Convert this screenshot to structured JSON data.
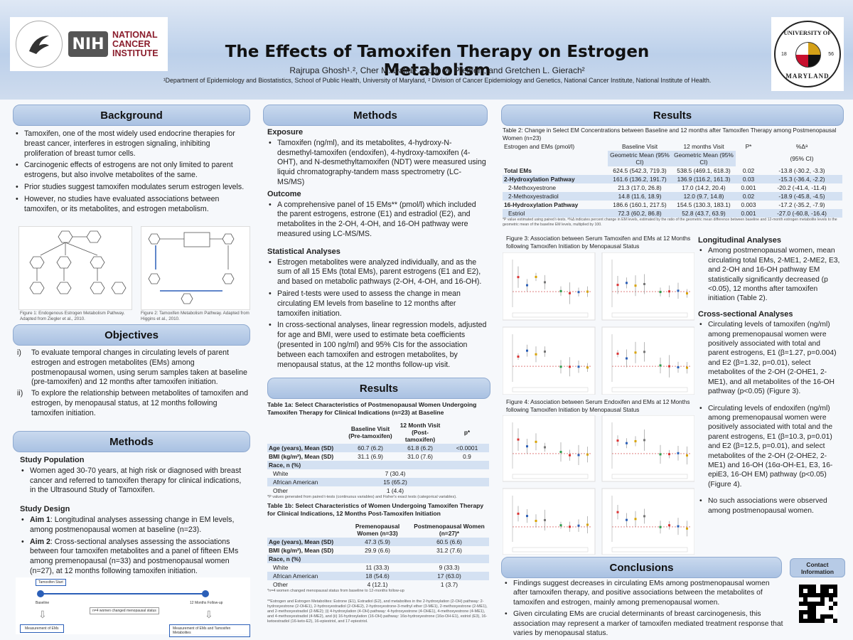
{
  "header": {
    "title": "The Effects of Tamoxifen Therapy on Estrogen Metabolism",
    "authors": "Rajrupa Ghosh¹˒², Cher M. Dallal¹, Ruth M. Pfeiffer², and Gretchen L. Gierach²",
    "affiliations": "¹Department of Epidemiology and Biostatistics, School of Public Health, University of Maryland, ² Division of Cancer Epidemiology and Genetics, National Cancer Institute, National Institute of Health.",
    "nih": "NIH",
    "nci": "NATIONAL CANCER INSTITUTE",
    "umd_top": "UNIVERSITY OF",
    "umd_bottom": "MARYLAND",
    "umd_left": "18",
    "umd_right": "56"
  },
  "background": {
    "heading": "Background",
    "bullets": [
      "Tamoxifen, one of the most widely used endocrine therapies for breast cancer, interferes in estrogen signaling, inhibiting proliferation of breast tumor cells.",
      "Carcinogenic effects of estrogens are not only limited to parent estrogens, but also involve metabolites of the same.",
      "Prior studies suggest tamoxifen modulates serum estrogen levels.",
      "However, no studies have evaluated associations between tamoxifen, or its metabolites, and estrogen metabolism."
    ],
    "fig1_caption": "Figure 1: Endogenous Estrogen Metabolism Pathway. Adapted from Ziegler et al., 2010.",
    "fig2_caption": "Figure 2: Tamoxifen Metabolism Pathway. Adapted from Higgins et al., 2010."
  },
  "objectives": {
    "heading": "Objectives",
    "items": [
      {
        "num": "i)",
        "text": "To evaluate temporal changes in circulating levels of parent estrogen and estrogen metabolites (EMs) among postmenopausal women, using serum samples taken at baseline (pre-tamoxifen) and 12 months after tamoxifen initiation."
      },
      {
        "num": "ii)",
        "text": "To explore the relationship between metabolites of tamoxifen and estrogen, by menopausal status, at 12 months following tamoxifen initiation."
      }
    ]
  },
  "methods_left": {
    "heading": "Methods",
    "study_population_title": "Study Population",
    "study_population": "Women aged 30-70 years, at high risk or diagnosed with breast cancer and referred to tamoxifen therapy for clinical indications, in the Ultrasound Study of Tamoxifen.",
    "study_design_title": "Study Design",
    "aim1_label": "Aim 1",
    "aim1": ": Longitudinal analyses assessing change in EM levels, among postmenopausal women at baseline (n=23).",
    "aim2_label": "Aim 2",
    "aim2": ": Cross-sectional analyses assessing the associations between four tamoxifen metabolites and a panel of fifteen EMs among premenopausal (n=33) and postmenopausal women (n=27), at 12 months following tamoxifen initiation.",
    "flow": {
      "start": "Tamoxifen Start",
      "baseline": "Baseline",
      "followup": "12 Months Follow-up",
      "middle": "n=4 women changed menopausal status",
      "box1": "Measurement of EMs",
      "box2": "Measurement of EMs and Tamoxifen Metabolites"
    }
  },
  "methods_mid": {
    "heading": "Methods",
    "exposure_title": "Exposure",
    "exposure": "Tamoxifen (ng/ml), and its metabolites, 4-hydroxy-N-desmethyl-tamoxifen (endoxifen), 4-hydroxy-tamoxifen (4-OHT), and N-desmethyltamoxifen (NDT) were measured using liquid chromatography-tandem mass spectrometry (LC-MS/MS)",
    "outcome_title": "Outcome",
    "outcome": "A comprehensive panel of 15 EMs** (pmol/l) which included the parent estrogens, estrone (E1) and estradiol (E2), and metabolites in the 2-OH, 4-OH, and 16-OH pathway were measured using LC-MS/MS.",
    "stats_title": "Statistical Analyses",
    "stats": [
      "Estrogen metabolites were analyzed individually, and as the sum of all 15 EMs (total EMs), parent estrogens (E1 and E2), and based on metabolic pathways (2-OH, 4-OH, and 16-OH).",
      "Paired t-tests were used to assess the change in mean circulating EM levels from baseline to 12 months after tamoxifen initiation.",
      "In cross-sectional analyses, linear regression models, adjusted for age and BMI, were used to estimate beta coefficients (presented in 100 ng/ml) and 95% CIs for the association between each tamoxifen and estrogen metabolites, by menopausal status, at the 12 months follow-up visit."
    ]
  },
  "results_mid": {
    "heading": "Results",
    "t1a_caption": "Table 1a: Select Characteristics of Postmenopausal Women Undergoing Tamoxifen Therapy for Clinical Indications (n=23) at Baseline",
    "t1a_head": [
      "",
      "Baseline Visit (Pre-tamoxifen)",
      "12 Month Visit (Post-tamoxifen)",
      "p*"
    ],
    "t1a_rows": [
      {
        "label": "Age (years), Mean (SD)",
        "a": "60.7 (6.2)",
        "b": "61.8 (6.2)",
        "p": "<0.0001",
        "shade": true
      },
      {
        "label": "BMI (kg/m²), Mean (SD)",
        "a": "31.1 (6.9)",
        "b": "31.0 (7.6)",
        "p": "0.9",
        "shade": false
      },
      {
        "label": "Race, n (%)",
        "a": "",
        "b": "",
        "p": "",
        "shade": true
      },
      {
        "label": "White",
        "a": "",
        "b": "7 (30.4)",
        "p": "",
        "shade": false
      },
      {
        "label": "African American",
        "a": "",
        "b": "15 (65.2)",
        "p": "",
        "shade": true
      },
      {
        "label": "Other",
        "a": "",
        "b": "1 (4.4)",
        "p": "",
        "shade": false
      }
    ],
    "t1a_note": "*P values generated from paired t-tests (continuous variables) and Fisher's exact tests (categorical variables).",
    "t1b_caption": "Table 1b: Select Characteristics of Women Undergoing Tamoxifen Therapy for Clinical Indications, 12 Months Post-Tamoxifen Initiation",
    "t1b_head": [
      "",
      "Premenopausal Women (n=33)",
      "Postmenopausal Women (n=27)*"
    ],
    "t1b_rows": [
      {
        "label": "Age (years), Mean (SD)",
        "a": "47.3 (5.9)",
        "b": "60.5 (6.6)",
        "shade": true
      },
      {
        "label": "BMI (kg/m²), Mean (SD)",
        "a": "29.9 (6.6)",
        "b": "31.2 (7.6)",
        "shade": false
      },
      {
        "label": "Race, n (%)",
        "a": "",
        "b": "",
        "shade": true
      },
      {
        "label": "White",
        "a": "11 (33.3)",
        "b": "9 (33.3)",
        "shade": false
      },
      {
        "label": "African American",
        "a": "18 (54.6)",
        "b": "17 (63.0)",
        "shade": true
      },
      {
        "label": "Other",
        "a": "4 (12.1)",
        "b": "1 (3.7)",
        "shade": false
      }
    ],
    "t1b_note": "*n=4 women changed menopausal status from baseline to 12-months follow-up",
    "footnote": "**Estrogen and Estrogen Metabolites: Estrone (E1), Estradiol (E2), and metabolites in the 2-hydroxylation (2-OH) pathway: 2-hydroxyestrone (2-OHE1), 2-hydroxyestradiol (2-OHE2), 2-hydroxyestrone-3-methyl ether (3-ME1), 2-methoxyestrone (2-ME1), and 2-methoxyestradiol (2-ME2); (i) 4-hydroxylation (4-OH) pathway: 4-hydroxyestrone (4-OHE1), 4-methoxyestrone (4-ME1), and 4-methoxyestradiol (4-ME2), and (ii) 16-hydroxylation (16-OH) pathway: 16α-hydroxyestrone (16α-OH-E1), estriol (E3), 16-ketoestradiol (16-keto-E2), 16-epiestriol, and 17-epiestriol."
  },
  "results_right": {
    "heading": "Results",
    "t2_caption": "Table 2: Change in Select EM Concentrations between Baseline and 12 months after Tamoxifen Therapy among Postmenopausal Women (n=23)",
    "t2_col0": "Estrogen and EMs (pmol/l)",
    "t2_col1": "Baseline Visit",
    "t2_col2": "12 months Visit",
    "t2_col3": "P*",
    "t2_col4": "%Δᵃ",
    "t2_sub1": "Geometric Mean (95% CI)",
    "t2_sub2": "Geometric Mean (95% CI)",
    "t2_sub4": "(95% CI)",
    "t2_rows": [
      {
        "label": "Total EMs",
        "a": "624.5 (542.3, 719.3)",
        "b": "538.5 (469.1, 618.3)",
        "p": "0.02",
        "d": "-13.8 (-30.2, -3.3)",
        "indent": false,
        "shade": false
      },
      {
        "label": "2-Hydroxylation Pathway",
        "a": "161.6 (136.2, 191.7)",
        "b": "136.9 (116.2, 161.3)",
        "p": "0.03",
        "d": "-15.3 (-36.4, -2.2)",
        "indent": false,
        "shade": true
      },
      {
        "label": "2-Methoxyestrone",
        "a": "21.3 (17.0, 26.8)",
        "b": "17.0 (14.2, 20.4)",
        "p": "0.001",
        "d": "-20.2 (-41.4, -11.4)",
        "indent": true,
        "shade": false
      },
      {
        "label": "2-Methoxyestradiol",
        "a": "14.8 (11.6, 18.9)",
        "b": "12.0 (9.7, 14.8)",
        "p": "0.02",
        "d": "-18.9 (-45.8, -4.5)",
        "indent": true,
        "shade": true
      },
      {
        "label": "16-Hydroxylation Pathway",
        "a": "186.6 (160.1, 217.5)",
        "b": "154.5 (130.3, 183.1)",
        "p": "0.003",
        "d": "-17.2 (-35.2, -7.9)",
        "indent": false,
        "shade": false
      },
      {
        "label": "Estriol",
        "a": "72.3 (60.2, 86.8)",
        "b": "52.8 (43.7, 63.9)",
        "p": "0.001",
        "d": "-27.0 (-60.8, -16.4)",
        "indent": true,
        "shade": true
      }
    ],
    "t2_note": "*P value estimated using paired t-tests. ᵃ%Δ indicates percent change in EM levels, estimated by the ratio of the geometric mean difference between baseline and 12-month estrogen metabolite levels to the geometric mean of the baseline EM levels, multiplied by 100.",
    "fig3_caption": "Figure 3: Association between Serum Tamoxifen and EMs at 12 Months following Tamoxifen Initiation by Menopausal Status",
    "fig4_caption": "Figure 4: Association between Serum Endoxifen and EMs at 12 Months following Tamoxifen Initiation by Menopausal Status",
    "long_title": "Longitudinal Analyses",
    "long": "Among postmenopausal women, mean circulating total EMs, 2-ME1, 2-ME2, E3, and 2-OH and 16-OH pathway EM statistically significantly decreased (p <0.05), 12 months after tamoxifen initiation (Table 2).",
    "cross_title": "Cross-sectional Analyses",
    "cross": [
      "Circulating levels of tamoxifen (ng/ml) among premenopausal women were positively associated with total and parent estrogens, E1 (β=1.27, p=0.004) and E2 (β=1.32, p=0.01), select metabolites of the 2-OH (2-OHE1, 2-ME1), and all metabolites of the 16-OH pathway (p<0.05) (Figure 3).",
      "Circulating levels of endoxifen (ng/ml) among premenopausal women were positively associated with total and the parent estrogens, E1 (β=10.3, p=0.01) and E2 (β=12.5, p=0.01), and select metabolites of the 2-OH (2-OHE2, 2-ME1) and 16-OH (16α-OH-E1, E3, 16-epiE3, 16-OH EM) pathway (p<0.05) (Figure 4).",
      "No such associations were observed among postmenopausal women."
    ]
  },
  "conclusions": {
    "heading": "Conclusions",
    "bullets": [
      "Findings suggest decreases in circulating EMs among postmenopausal women after tamoxifen therapy, and positive associations between the metabolites of tamoxifen and estrogen, mainly among premenopausal women.",
      "Given circulating EMs are crucial determinants of breast carcinogenesis, this association may represent a marker of tamoxifen mediated treatment response that varies by menopausal status."
    ]
  },
  "contact": "Contact Information",
  "colors": {
    "header": "#bcd0ea",
    "section": "#a9c1e2",
    "table_shade": "#d4e1f2"
  }
}
